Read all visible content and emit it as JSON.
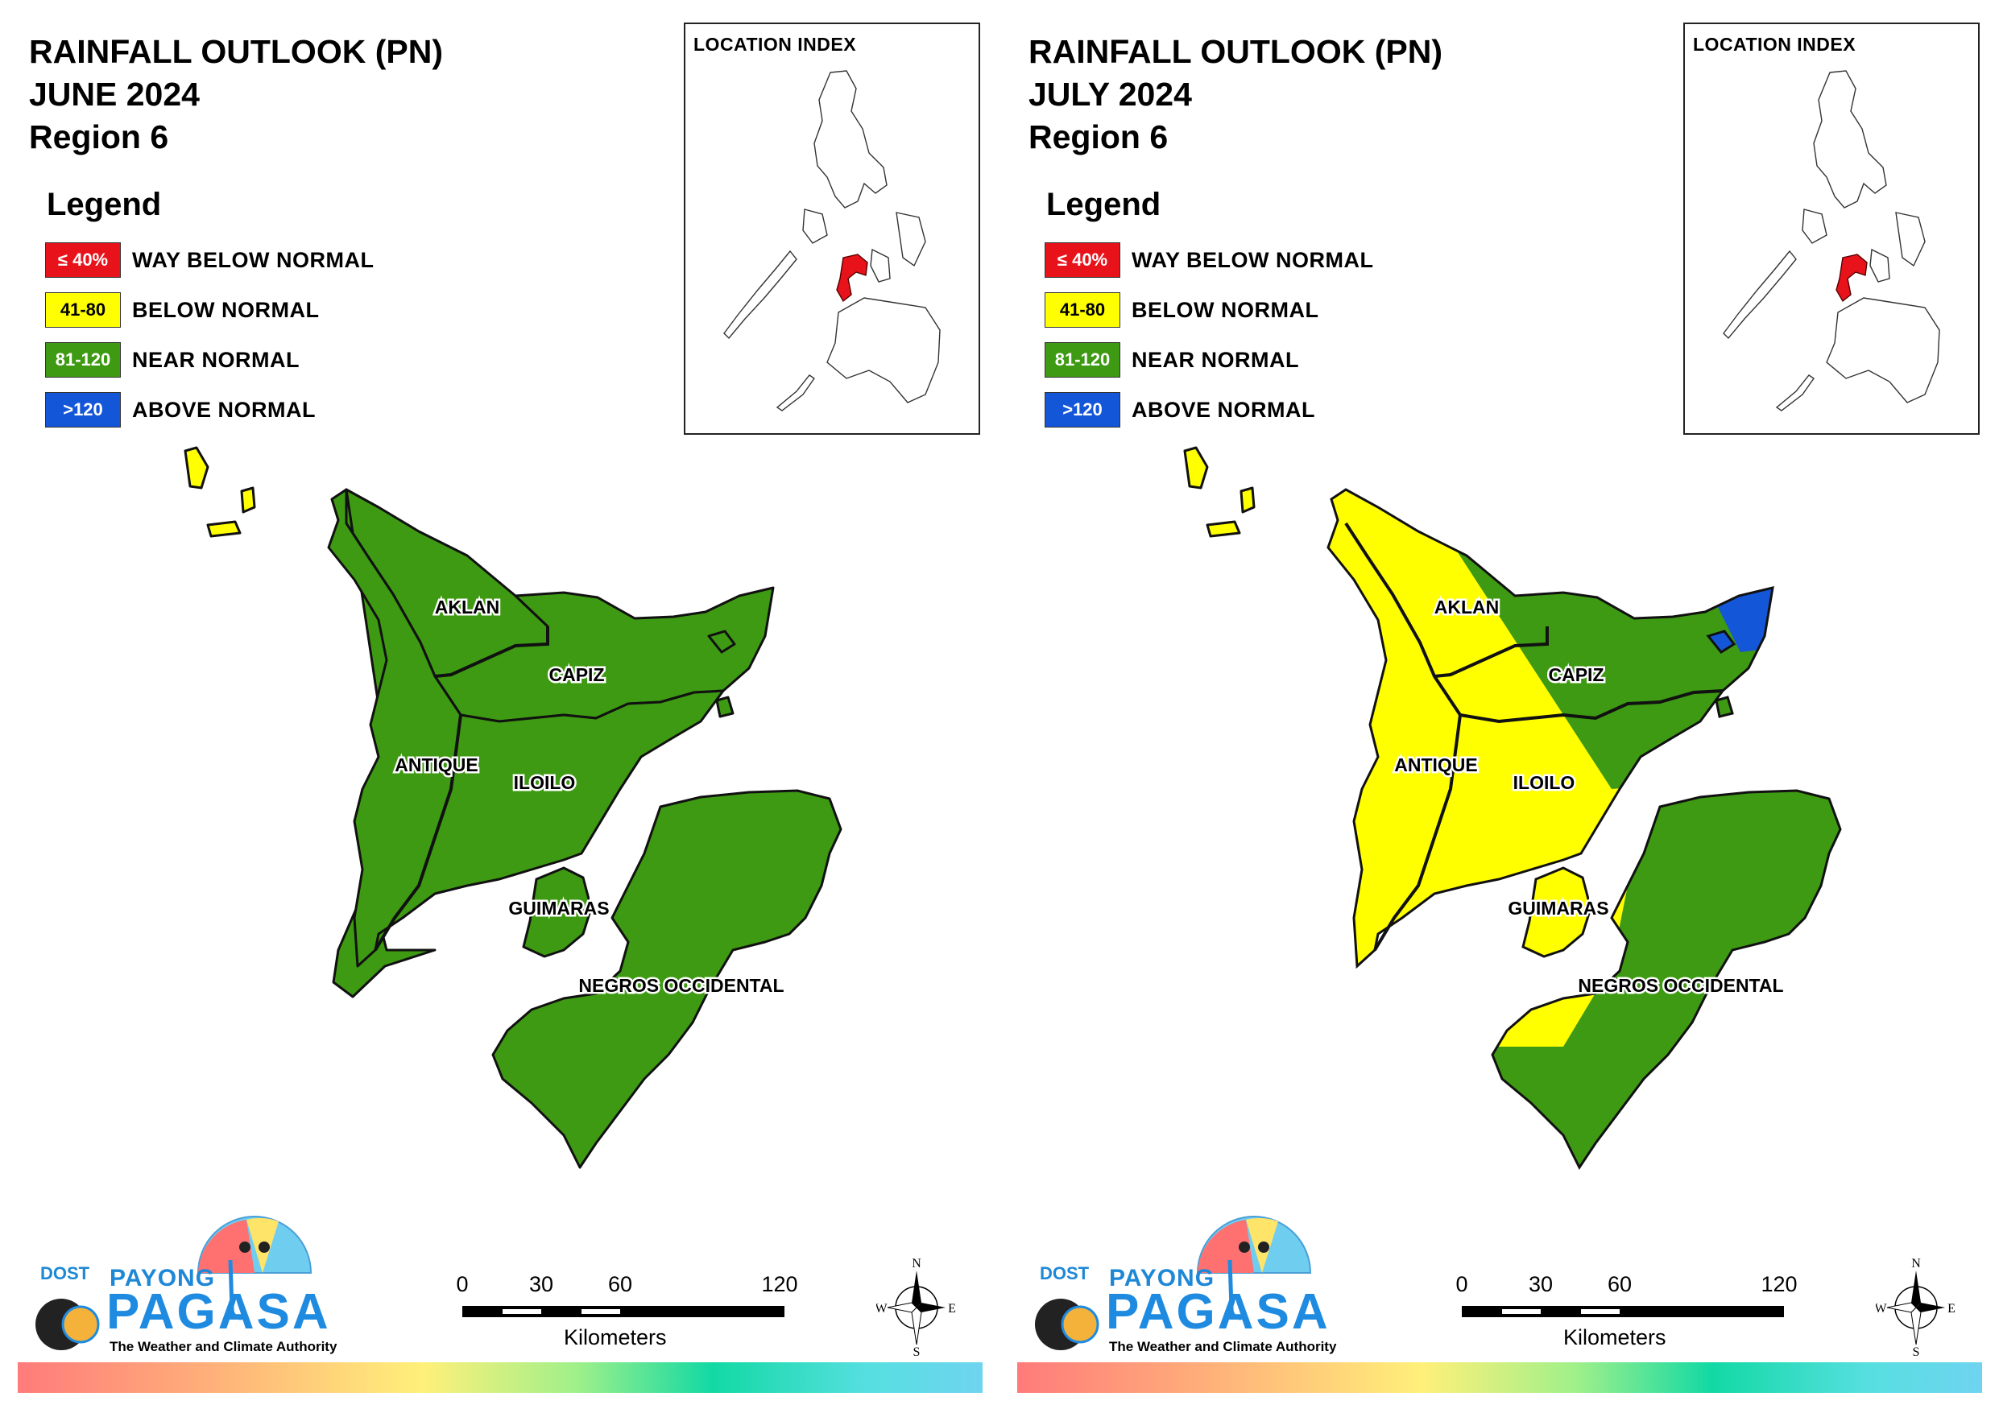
{
  "colors": {
    "way_below": "#e8121b",
    "below": "#ffff00",
    "near": "#3e9a12",
    "above": "#1456d8",
    "outline": "#111111"
  },
  "panels": [
    {
      "title_line1": "RAINFALL OUTLOOK (PN)",
      "title_line2": "JUNE 2024",
      "title_line3": "Region 6",
      "legend_title": "Legend",
      "legend": [
        {
          "range": "≤ 40%",
          "label": "WAY BELOW NORMAL",
          "color": "#e8121b",
          "text_color": "#ffffff"
        },
        {
          "range": "41-80",
          "label": "BELOW NORMAL",
          "color": "#ffff00",
          "text_color": "#000000"
        },
        {
          "range": "81-120",
          "label": "NEAR NORMAL",
          "color": "#3e9a12",
          "text_color": "#ffffff"
        },
        {
          "range": ">120",
          "label": "ABOVE NORMAL",
          "color": "#1456d8",
          "text_color": "#ffffff"
        }
      ],
      "inset_title": "LOCATION INDEX",
      "provinces": {
        "aklan": "AKLAN",
        "capiz": "CAPIZ",
        "antique": "ANTIQUE",
        "iloilo": "ILOILO",
        "guimaras": "GUIMARAS",
        "negros": "NEGROS OCCIDENTAL"
      },
      "outlook": {
        "aklan": "near normal",
        "capiz": "near normal",
        "antique": "near normal",
        "iloilo": "near normal",
        "guimaras": "near normal",
        "negros": "near normal",
        "north_islands": "below normal"
      },
      "logo": {
        "dost": "DOST",
        "payong": "PAYONG",
        "pagasa": "PAGASA",
        "tagline": "The Weather and Climate Authority"
      },
      "scale": {
        "ticks": [
          "0",
          "30",
          "60",
          "120"
        ],
        "unit": "Kilometers"
      },
      "compass": {
        "n": "N",
        "s": "S",
        "e": "E",
        "w": "W"
      }
    },
    {
      "title_line1": "RAINFALL OUTLOOK (PN)",
      "title_line2": "JULY 2024",
      "title_line3": "Region 6",
      "legend_title": "Legend",
      "legend": [
        {
          "range": "≤ 40%",
          "label": "WAY BELOW NORMAL",
          "color": "#e8121b",
          "text_color": "#ffffff"
        },
        {
          "range": "41-80",
          "label": "BELOW NORMAL",
          "color": "#ffff00",
          "text_color": "#000000"
        },
        {
          "range": "81-120",
          "label": "NEAR NORMAL",
          "color": "#3e9a12",
          "text_color": "#ffffff"
        },
        {
          "range": ">120",
          "label": "ABOVE NORMAL",
          "color": "#1456d8",
          "text_color": "#ffffff"
        }
      ],
      "inset_title": "LOCATION INDEX",
      "provinces": {
        "aklan": "AKLAN",
        "capiz": "CAPIZ",
        "antique": "ANTIQUE",
        "iloilo": "ILOILO",
        "guimaras": "GUIMARAS",
        "negros": "NEGROS OCCIDENTAL"
      },
      "outlook": {
        "aklan": "below normal (west) / near normal (east)",
        "capiz": "near normal, above normal along north-east coast",
        "antique": "below normal",
        "iloilo": "below normal (west) / near normal (north-east)",
        "guimaras": "below normal",
        "negros": "near normal, below normal along north-west coast",
        "north_islands": "below normal"
      },
      "logo": {
        "dost": "DOST",
        "payong": "PAYONG",
        "pagasa": "PAGASA",
        "tagline": "The Weather and Climate Authority"
      },
      "scale": {
        "ticks": [
          "0",
          "30",
          "60",
          "120"
        ],
        "unit": "Kilometers"
      },
      "compass": {
        "n": "N",
        "s": "S",
        "e": "E",
        "w": "W"
      }
    }
  ]
}
